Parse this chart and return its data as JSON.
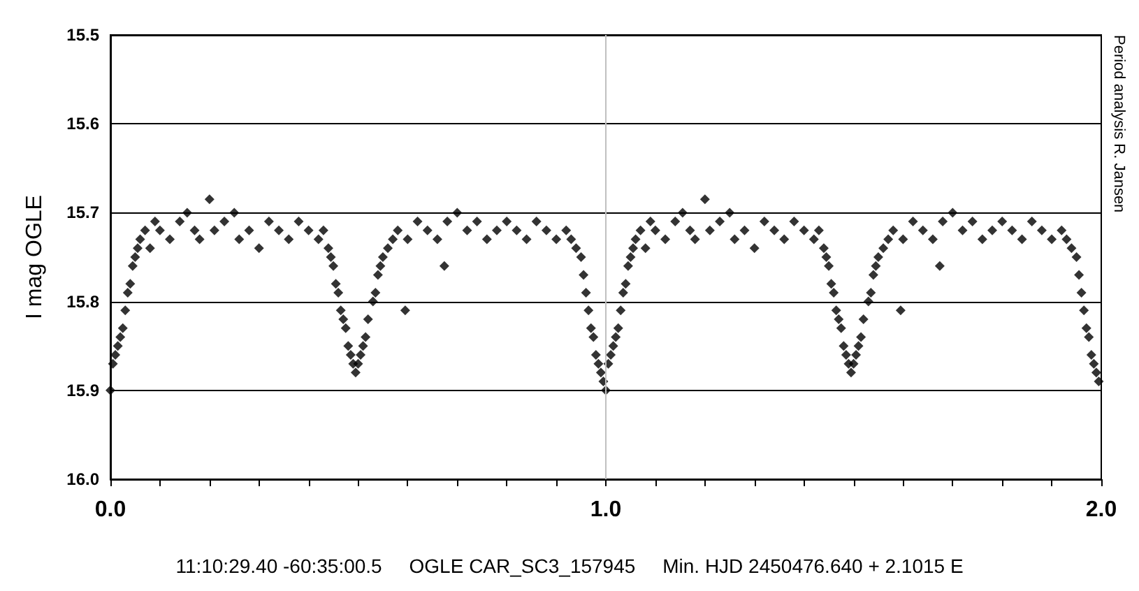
{
  "chart_data": {
    "type": "scatter",
    "ylabel": "I mag OGLE",
    "annotations": [
      "11:10:29.40 -60:35:00.5     OGLE CAR_SC3_157945     Min. HJD 2450476.640 + 2.1015 E",
      "Period analysis R. Jansen"
    ],
    "x": [
      0,
      0.005,
      0.01,
      0.015,
      0.02,
      0.025,
      0.03,
      0.035,
      0.04,
      0.045,
      0.05,
      0.055,
      0.06,
      0.07,
      0.08,
      0.09,
      0.1,
      0.12,
      0.14,
      0.155,
      0.17,
      0.18,
      0.2,
      0.21,
      0.23,
      0.25,
      0.26,
      0.28,
      0.3,
      0.32,
      0.34,
      0.36,
      0.38,
      0.4,
      0.42,
      0.43,
      0.44,
      0.445,
      0.45,
      0.455,
      0.46,
      0.465,
      0.47,
      0.475,
      0.48,
      0.485,
      0.49,
      0.495,
      0.5,
      0.505,
      0.51,
      0.515,
      0.52,
      0.53,
      0.535,
      0.54,
      0.545,
      0.55,
      0.56,
      0.57,
      0.58,
      0.595,
      0.6,
      0.62,
      0.64,
      0.66,
      0.674,
      0.68,
      0.7,
      0.72,
      0.74,
      0.76,
      0.78,
      0.8,
      0.82,
      0.84,
      0.86,
      0.88,
      0.9,
      0.92,
      0.93,
      0.94,
      0.95,
      0.955,
      0.96,
      0.965,
      0.97,
      0.975,
      0.98,
      0.985,
      0.99,
      0.995,
      1,
      1.005,
      1.01,
      1.015,
      1.02,
      1.025,
      1.03,
      1.035,
      1.04,
      1.045,
      1.05,
      1.055,
      1.06,
      1.07,
      1.08,
      1.09,
      1.1,
      1.12,
      1.14,
      1.155,
      1.17,
      1.18,
      1.2,
      1.21,
      1.23,
      1.25,
      1.26,
      1.28,
      1.3,
      1.32,
      1.34,
      1.36,
      1.38,
      1.4,
      1.42,
      1.43,
      1.44,
      1.445,
      1.45,
      1.455,
      1.46,
      1.465,
      1.47,
      1.475,
      1.48,
      1.485,
      1.49,
      1.495,
      1.5,
      1.505,
      1.51,
      1.515,
      1.52,
      1.53,
      1.535,
      1.54,
      1.545,
      1.55,
      1.56,
      1.57,
      1.58,
      1.595,
      1.6,
      1.62,
      1.64,
      1.66,
      1.674,
      1.68,
      1.7,
      1.72,
      1.74,
      1.76,
      1.78,
      1.8,
      1.82,
      1.84,
      1.86,
      1.88,
      1.9,
      1.92,
      1.93,
      1.94,
      1.95,
      1.955,
      1.96,
      1.965,
      1.97,
      1.975,
      1.98,
      1.985,
      1.99,
      1.995
    ],
    "series": [
      {
        "color": "#000000",
        "values": [
          15.9,
          15.87,
          15.86,
          15.85,
          15.84,
          15.83,
          15.81,
          15.79,
          15.78,
          15.76,
          15.75,
          15.74,
          15.73,
          15.72,
          15.74,
          15.71,
          15.72,
          15.73,
          15.71,
          15.7,
          15.72,
          15.73,
          15.685,
          15.72,
          15.71,
          15.7,
          15.73,
          15.72,
          15.74,
          15.71,
          15.72,
          15.73,
          15.71,
          15.72,
          15.73,
          15.72,
          15.74,
          15.75,
          15.76,
          15.78,
          15.79,
          15.81,
          15.82,
          15.83,
          15.85,
          15.86,
          15.87,
          15.88,
          15.87,
          15.86,
          15.85,
          15.84,
          15.82,
          15.8,
          15.79,
          15.77,
          15.76,
          15.75,
          15.74,
          15.73,
          15.72,
          15.81,
          15.73,
          15.71,
          15.72,
          15.73,
          15.76,
          15.71,
          15.7,
          15.72,
          15.71,
          15.73,
          15.72,
          15.71,
          15.72,
          15.73,
          15.71,
          15.72,
          15.73,
          15.72,
          15.73,
          15.74,
          15.75,
          15.77,
          15.79,
          15.81,
          15.83,
          15.84,
          15.86,
          15.87,
          15.88,
          15.89,
          15.9,
          15.87,
          15.86,
          15.85,
          15.84,
          15.83,
          15.81,
          15.79,
          15.78,
          15.76,
          15.75,
          15.74,
          15.73,
          15.72,
          15.74,
          15.71,
          15.72,
          15.73,
          15.71,
          15.7,
          15.72,
          15.73,
          15.685,
          15.72,
          15.71,
          15.7,
          15.73,
          15.72,
          15.74,
          15.71,
          15.72,
          15.73,
          15.71,
          15.72,
          15.73,
          15.72,
          15.74,
          15.75,
          15.76,
          15.78,
          15.79,
          15.81,
          15.82,
          15.83,
          15.85,
          15.86,
          15.87,
          15.88,
          15.87,
          15.86,
          15.85,
          15.84,
          15.82,
          15.8,
          15.79,
          15.77,
          15.76,
          15.75,
          15.74,
          15.73,
          15.72,
          15.81,
          15.73,
          15.71,
          15.72,
          15.73,
          15.76,
          15.71,
          15.7,
          15.72,
          15.71,
          15.73,
          15.72,
          15.71,
          15.72,
          15.73,
          15.71,
          15.72,
          15.73,
          15.72,
          15.73,
          15.74,
          15.75,
          15.77,
          15.79,
          15.81,
          15.83,
          15.84,
          15.86,
          15.87,
          15.88,
          15.89
        ]
      }
    ],
    "xlim": [
      0,
      2
    ],
    "xticks": [
      {
        "value": 0,
        "label": "0.0"
      },
      {
        "value": 0.1,
        "label": null
      },
      {
        "value": 0.2,
        "label": null
      },
      {
        "value": 0.3,
        "label": null
      },
      {
        "value": 0.4,
        "label": null
      },
      {
        "value": 0.5,
        "label": null
      },
      {
        "value": 0.6,
        "label": null
      },
      {
        "value": 0.7,
        "label": null
      },
      {
        "value": 0.8,
        "label": null
      },
      {
        "value": 0.9,
        "label": null
      },
      {
        "value": 1,
        "label": "1.0"
      },
      {
        "value": 1.1,
        "label": null
      },
      {
        "value": 1.2,
        "label": null
      },
      {
        "value": 1.3,
        "label": null
      },
      {
        "value": 1.4,
        "label": null
      },
      {
        "value": 1.5,
        "label": null
      },
      {
        "value": 1.6,
        "label": null
      },
      {
        "value": 1.7,
        "label": null
      },
      {
        "value": 1.8,
        "label": null
      },
      {
        "value": 1.9,
        "label": null
      },
      {
        "value": 2,
        "label": "2.0"
      }
    ],
    "ylim": [
      16,
      15.5
    ],
    "yticks": [
      15.5,
      15.6,
      15.7,
      15.8,
      15.9,
      {
        "value": 16,
        "label": "16.0"
      }
    ],
    "ref_lines": [
      {
        "axis": "x",
        "value": 1,
        "color": "#c0c0c0"
      }
    ],
    "grid": "y",
    "marker": "diamond"
  }
}
